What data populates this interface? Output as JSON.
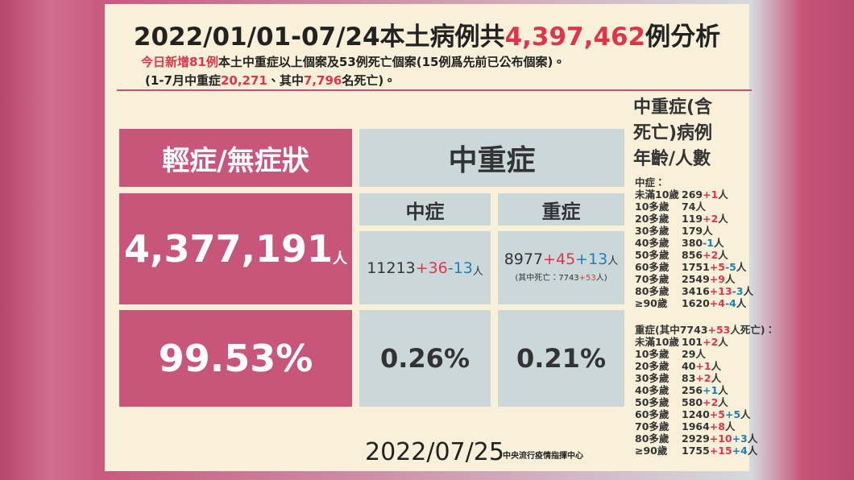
{
  "title": {
    "prefix": "2022/01/01-07/24本土病例共",
    "total": "4,397,462",
    "suffix": "例分析"
  },
  "subtitle": {
    "line1_highlight": "今日新增81例",
    "line1_rest": "本土中重症以上個案及53例死亡個案(15例爲先前已公布個案)。",
    "line2_a": "(1-7月中重症",
    "line2_severe": "20,271",
    "line2_b": "、其中",
    "line2_deaths": "7,796",
    "line2_c": "名死亡)。"
  },
  "table": {
    "mild_header": "輕症/無症狀",
    "severe_header": "中重症",
    "moderate_label": "中症",
    "critical_label": "重症",
    "mild_count": "4,377,191",
    "unit": "人",
    "moderate": {
      "count": 11213,
      "new": "+36",
      "out": "-13"
    },
    "critical": {
      "count": 8977,
      "new": "+45",
      "out": "+13",
      "note_prefix": "(其中死亡：7743",
      "note_new": "+53",
      "note_suffix": "人)"
    },
    "mild_pct": "99.53%",
    "moderate_pct": "0.26%",
    "critical_pct": "0.21%"
  },
  "age_panel": {
    "heading_lines": [
      "中重症(含",
      "死亡)病例",
      "年齡/人數"
    ],
    "moderate_header": "中症：",
    "moderate_rows": [
      {
        "age": "未滿10歲",
        "count": 269,
        "new": "+1",
        "unit": "人"
      },
      {
        "age": "10多歲",
        "count": 74,
        "unit": "人"
      },
      {
        "age": "20多歲",
        "count": 119,
        "new": "+2",
        "unit": "人"
      },
      {
        "age": "30多歲",
        "count": 179,
        "unit": "人"
      },
      {
        "age": "40多歲",
        "count": 380,
        "out": "-1",
        "unit": "人"
      },
      {
        "age": "50多歲",
        "count": 856,
        "new": "+2",
        "unit": "人"
      },
      {
        "age": "60多歲",
        "count": 1751,
        "new": "+5",
        "out": "-5",
        "unit": "人"
      },
      {
        "age": "70多歲",
        "count": 2549,
        "new": "+9",
        "unit": "人"
      },
      {
        "age": "80多歲",
        "count": 3416,
        "new": "+13",
        "out": "-3",
        "unit": "人"
      },
      {
        "age": "≥90歲",
        "count": 1620,
        "new": "+4",
        "out": "-4",
        "unit": "人"
      }
    ],
    "critical_header": {
      "prefix": "重症(其中7743",
      "new": "+53",
      "suffix": "人死亡)："
    },
    "critical_rows": [
      {
        "age": "未滿10歲",
        "count": 101,
        "new": "+2",
        "unit": "人"
      },
      {
        "age": "10多歲",
        "count": 29,
        "unit": "人"
      },
      {
        "age": "20多歲",
        "count": 40,
        "new": "+1",
        "unit": "人"
      },
      {
        "age": "30多歲",
        "count": 83,
        "new": "+2",
        "unit": "人"
      },
      {
        "age": "40多歲",
        "count": 256,
        "out": "+1",
        "unit": "人"
      },
      {
        "age": "50多歲",
        "count": 580,
        "new": "+2",
        "unit": "人"
      },
      {
        "age": "60多歲",
        "count": 1240,
        "new": "+5",
        "out": "+5",
        "unit": "人"
      },
      {
        "age": "70多歲",
        "count": 1964,
        "new": "+8",
        "unit": "人"
      },
      {
        "age": "80多歲",
        "count": 2929,
        "new": "+10",
        "out": "+3",
        "unit": "人"
      },
      {
        "age": "≥90歲",
        "count": 1755,
        "new": "+15",
        "out": "+4",
        "unit": "人"
      }
    ]
  },
  "footer": {
    "date": "2022/07/25",
    "agency": "中央流行疫情指揮中心"
  }
}
